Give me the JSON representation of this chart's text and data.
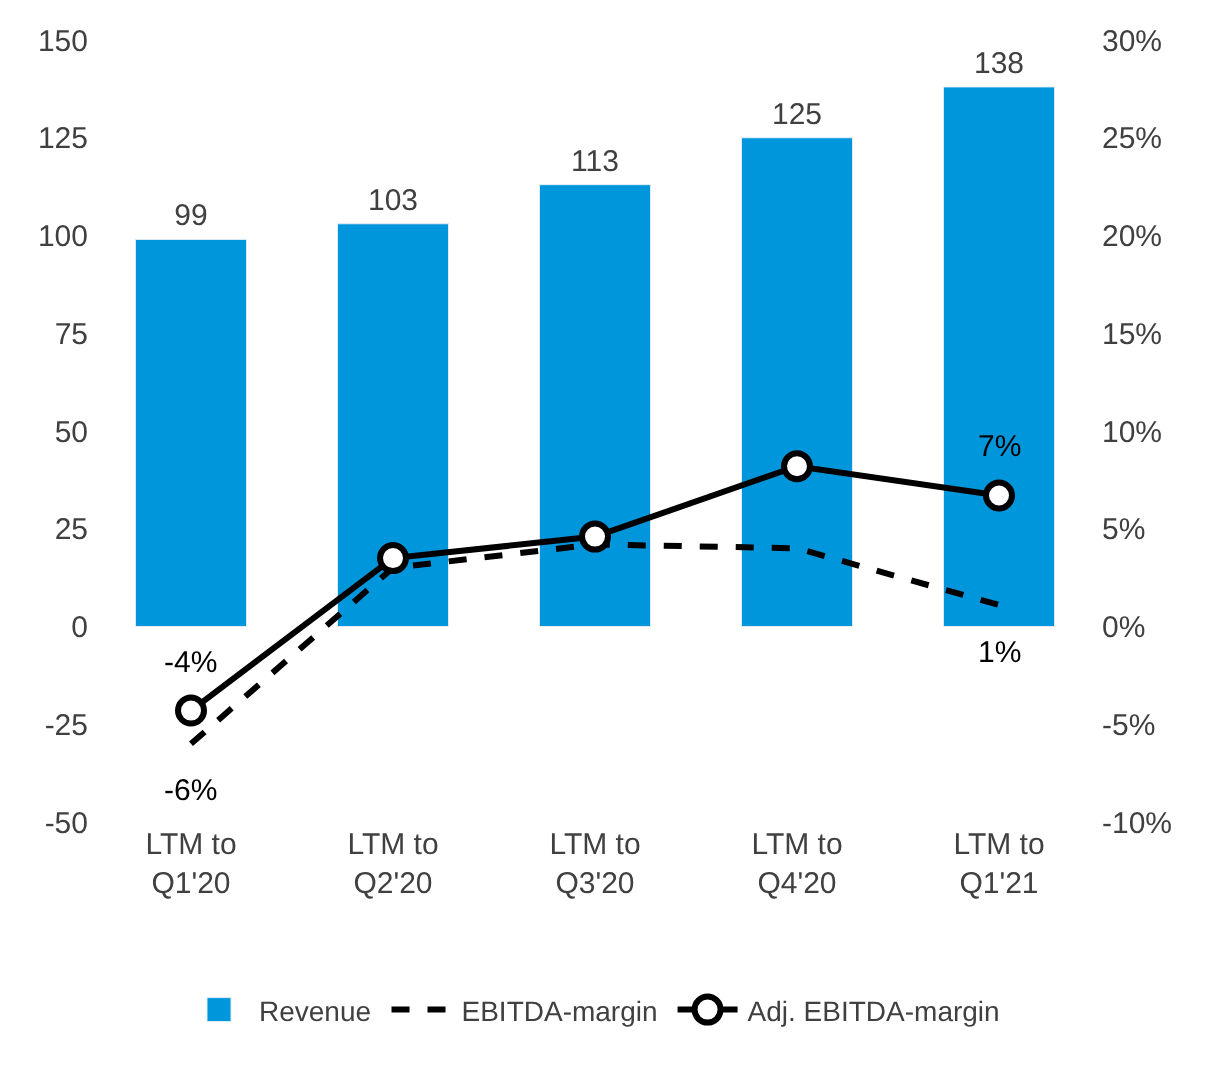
{
  "chart_data": {
    "type": "bar",
    "categories": [
      "LTM to\nQ1'20",
      "LTM to\nQ2'20",
      "LTM to\nQ3'20",
      "LTM to\nQ4'20",
      "LTM to\nQ1'21"
    ],
    "series": [
      {
        "name": "Revenue",
        "color": "#0096dc",
        "values": [
          99,
          103,
          113,
          125,
          138
        ]
      },
      {
        "name": "EBITDA-margin",
        "type": "line",
        "axis": "y2",
        "color": "#000000",
        "line_style": "dashed",
        "marker": "none",
        "values": [
          -6,
          3,
          4.2,
          4,
          1.1
        ],
        "value_labels": [
          "-6%",
          null,
          null,
          null,
          "1%"
        ]
      },
      {
        "name": "Adj. EBITDA-margin",
        "type": "line",
        "axis": "y2",
        "color": "#000000",
        "line_style": "solid",
        "marker": "circle",
        "values": [
          -4.3,
          3.5,
          4.6,
          8.2,
          6.7
        ],
        "value_labels": [
          "-4%",
          null,
          null,
          null,
          "7%"
        ]
      }
    ],
    "data_labels": true,
    "ylim": [
      -50,
      150
    ],
    "yticks": [
      -50,
      -25,
      0,
      25,
      50,
      75,
      100,
      125,
      150
    ],
    "y2lim": [
      -10,
      30
    ],
    "y2ticks": [
      {
        "value": -10,
        "label": "-10%"
      },
      {
        "value": -5,
        "label": "-5%"
      },
      {
        "value": 0,
        "label": "0%"
      },
      {
        "value": 5,
        "label": "5%"
      },
      {
        "value": 10,
        "label": "10%"
      },
      {
        "value": 15,
        "label": "15%"
      },
      {
        "value": 20,
        "label": "20%"
      },
      {
        "value": 25,
        "label": "25%"
      },
      {
        "value": 30,
        "label": "30%"
      }
    ],
    "legend": "bottom"
  }
}
